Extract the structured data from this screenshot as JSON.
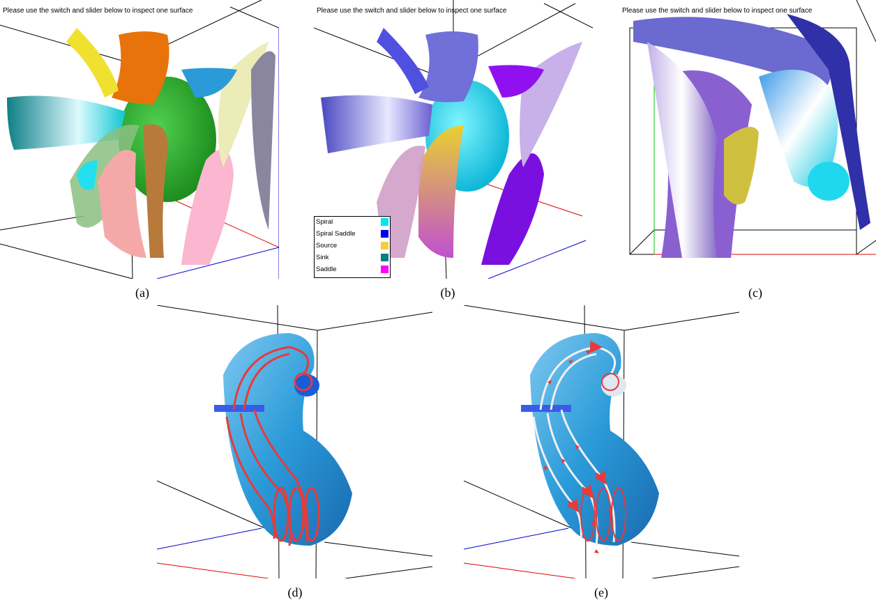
{
  "panels": [
    {
      "id": "a",
      "caption": "(a)",
      "instruction": "Please use the switch and slider below to inspect one surface"
    },
    {
      "id": "b",
      "caption": "(b)",
      "instruction": "Please use the switch and slider below to inspect one surface"
    },
    {
      "id": "c",
      "caption": "(c)",
      "instruction": "Please use the switch and slider below to inspect one surface"
    },
    {
      "id": "d",
      "caption": "(d)"
    },
    {
      "id": "e",
      "caption": "(e)"
    }
  ],
  "legend": [
    {
      "label": "Spiral",
      "color": "#00e5ee"
    },
    {
      "label": "Spiral Saddle",
      "color": "#0000ee"
    },
    {
      "label": "Source",
      "color": "#f0d040"
    },
    {
      "label": "Sink",
      "color": "#008080"
    },
    {
      "label": "Saddle",
      "color": "#ff00ff"
    }
  ],
  "colors": {
    "box": "#000000",
    "x_axis": "#e00000",
    "z_axis": "#0000cc",
    "y_axis": "#00cc00",
    "streamline": "#e83a3a",
    "tube": "#2a9ad8"
  }
}
